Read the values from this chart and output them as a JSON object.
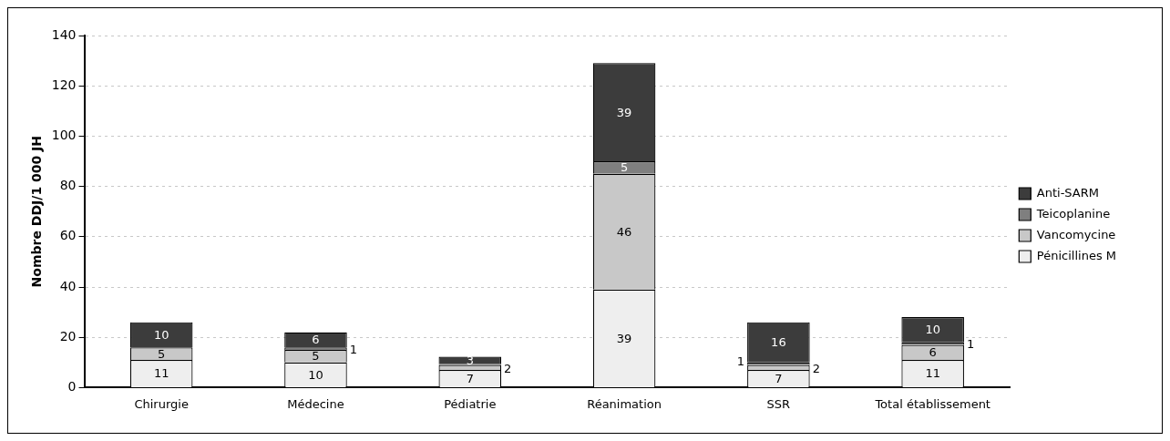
{
  "chart_data": {
    "type": "bar",
    "stacked": true,
    "ylabel": "Nombre DDJ/1 000 JH",
    "categories": [
      "Chirurgie",
      "Médecine",
      "Pédiatrie",
      "Réanimation",
      "SSR",
      "Total établissement"
    ],
    "series": [
      {
        "name": "Pénicillines M",
        "color": "#eeeeee",
        "values": [
          11,
          10,
          7,
          39,
          7,
          11
        ],
        "value_labels": [
          "11",
          "10",
          "7",
          "39",
          "7",
          "11"
        ]
      },
      {
        "name": "Vancomycine",
        "color": "#c8c8c8",
        "values": [
          5,
          5,
          2,
          46,
          2,
          6
        ],
        "value_labels": [
          "5",
          "5",
          "2",
          "46",
          "2",
          "6"
        ]
      },
      {
        "name": "Teicoplanine",
        "color": "#7f7f7f",
        "values": [
          null,
          1,
          0.3,
          5,
          1,
          1
        ],
        "value_labels": [
          null,
          "1",
          null,
          "5",
          "1",
          "1"
        ]
      },
      {
        "name": "Anti-SARM",
        "color": "#3c3c3c",
        "values": [
          10,
          6,
          3,
          39,
          16,
          10
        ],
        "value_labels": [
          "10",
          "6",
          "3",
          "39",
          "16",
          "10"
        ]
      }
    ],
    "ylim": [
      0,
      140
    ],
    "yticks": [
      0,
      20,
      40,
      60,
      80,
      100,
      120,
      140
    ],
    "grid": "y",
    "legend": "right"
  }
}
